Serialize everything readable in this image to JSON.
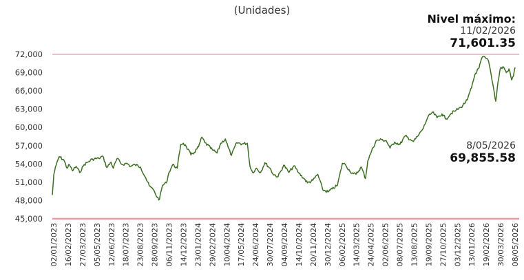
{
  "subtitle": "(Unidades)",
  "annotations": {
    "max": {
      "heading": "Nivel máximo:",
      "date": "11/02/2026",
      "value": "71,601.35"
    },
    "last": {
      "date": "8/05/2026",
      "value": "69,855.58"
    }
  },
  "chart_data": {
    "type": "line",
    "title": "",
    "subtitle": "(Unidades)",
    "ylim": [
      45000,
      72000
    ],
    "y_ticks": [
      "45,000",
      "48,000",
      "51,000",
      "54,000",
      "57,000",
      "60,000",
      "63,000",
      "66,000",
      "69,000",
      "72,000"
    ],
    "y_tick_values": [
      45000,
      48000,
      51000,
      54000,
      57000,
      60000,
      63000,
      66000,
      69000,
      72000
    ],
    "x_range": [
      "2023-01-02",
      "2026-05-08"
    ],
    "x_ticks": [
      "02/01/2023",
      "16/02/2023",
      "27/03/2023",
      "05/05/2023",
      "12/06/2023",
      "18/07/2023",
      "23/08/2023",
      "28/09/2023",
      "06/11/2023",
      "14/12/2023",
      "23/01/2024",
      "29/02/2024",
      "10/04/2024",
      "17/05/2024",
      "24/06/2024",
      "30/07/2024",
      "04/09/2024",
      "14/10/2024",
      "20/11/2024",
      "30/12/2024",
      "06/02/2025",
      "14/03/2025",
      "24/04/2025",
      "02/06/2025",
      "08/07/2025",
      "13/08/2025",
      "19/09/2025",
      "27/10/2025",
      "03/12/2025",
      "13/01/2026",
      "19/02/2026",
      "30/03/2026",
      "08/05/2026"
    ],
    "reference_lines": [
      {
        "value": 72000,
        "color": "#e79aa6"
      },
      {
        "value": 45000,
        "color": "#e79aa6"
      }
    ],
    "series_color": "#3b6e22",
    "series": [
      {
        "points": [
          [
            "2023-01-02",
            48900
          ],
          [
            "2023-01-06",
            52300
          ],
          [
            "2023-01-12",
            53800
          ],
          [
            "2023-01-20",
            55200
          ],
          [
            "2023-02-01",
            54700
          ],
          [
            "2023-02-10",
            53300
          ],
          [
            "2023-02-16",
            53900
          ],
          [
            "2023-02-24",
            52900
          ],
          [
            "2023-03-06",
            53600
          ],
          [
            "2023-03-15",
            52600
          ],
          [
            "2023-03-27",
            53900
          ],
          [
            "2023-04-06",
            54300
          ],
          [
            "2023-04-18",
            54800
          ],
          [
            "2023-05-05",
            54900
          ],
          [
            "2023-05-15",
            55300
          ],
          [
            "2023-05-26",
            53400
          ],
          [
            "2023-06-06",
            54300
          ],
          [
            "2023-06-12",
            53300
          ],
          [
            "2023-06-22",
            54900
          ],
          [
            "2023-07-05",
            53900
          ],
          [
            "2023-07-18",
            54100
          ],
          [
            "2023-07-28",
            53600
          ],
          [
            "2023-08-08",
            53900
          ],
          [
            "2023-08-23",
            53500
          ],
          [
            "2023-09-05",
            51800
          ],
          [
            "2023-09-15",
            50400
          ],
          [
            "2023-09-28",
            49600
          ],
          [
            "2023-10-06",
            48500
          ],
          [
            "2023-10-12",
            48200
          ],
          [
            "2023-10-20",
            50500
          ],
          [
            "2023-10-30",
            50900
          ],
          [
            "2023-11-06",
            52600
          ],
          [
            "2023-11-16",
            53900
          ],
          [
            "2023-11-28",
            53300
          ],
          [
            "2023-12-07",
            57200
          ],
          [
            "2023-12-14",
            57400
          ],
          [
            "2023-12-22",
            56800
          ],
          [
            "2024-01-03",
            55500
          ],
          [
            "2024-01-12",
            55900
          ],
          [
            "2024-01-23",
            56800
          ],
          [
            "2024-02-01",
            58400
          ],
          [
            "2024-02-09",
            57500
          ],
          [
            "2024-02-29",
            56300
          ],
          [
            "2024-03-12",
            55800
          ],
          [
            "2024-03-22",
            57400
          ],
          [
            "2024-04-03",
            58100
          ],
          [
            "2024-04-10",
            56800
          ],
          [
            "2024-04-19",
            55400
          ],
          [
            "2024-05-03",
            57500
          ],
          [
            "2024-05-17",
            57300
          ],
          [
            "2024-05-31",
            57400
          ],
          [
            "2024-06-07",
            53600
          ],
          [
            "2024-06-14",
            52600
          ],
          [
            "2024-06-24",
            53300
          ],
          [
            "2024-07-05",
            52600
          ],
          [
            "2024-07-16",
            54200
          ],
          [
            "2024-07-30",
            53300
          ],
          [
            "2024-08-06",
            52400
          ],
          [
            "2024-08-20",
            51900
          ],
          [
            "2024-09-04",
            53800
          ],
          [
            "2024-09-18",
            52600
          ],
          [
            "2024-10-01",
            53700
          ],
          [
            "2024-10-14",
            52500
          ],
          [
            "2024-10-28",
            51600
          ],
          [
            "2024-11-06",
            50900
          ],
          [
            "2024-11-20",
            51300
          ],
          [
            "2024-12-03",
            52300
          ],
          [
            "2024-12-16",
            49800
          ],
          [
            "2024-12-30",
            49400
          ],
          [
            "2025-01-10",
            49900
          ],
          [
            "2025-01-24",
            50500
          ],
          [
            "2025-02-06",
            54100
          ],
          [
            "2025-02-14",
            53900
          ],
          [
            "2025-02-26",
            52800
          ],
          [
            "2025-03-07",
            52400
          ],
          [
            "2025-03-14",
            52300
          ],
          [
            "2025-03-28",
            53500
          ],
          [
            "2025-04-08",
            51600
          ],
          [
            "2025-04-14",
            54500
          ],
          [
            "2025-04-24",
            56100
          ],
          [
            "2025-05-06",
            57800
          ],
          [
            "2025-05-20",
            58000
          ],
          [
            "2025-06-02",
            57800
          ],
          [
            "2025-06-12",
            56600
          ],
          [
            "2025-06-24",
            57600
          ],
          [
            "2025-07-08",
            57200
          ],
          [
            "2025-07-22",
            58600
          ],
          [
            "2025-08-05",
            58000
          ],
          [
            "2025-08-13",
            57700
          ],
          [
            "2025-08-26",
            58700
          ],
          [
            "2025-09-08",
            59900
          ],
          [
            "2025-09-19",
            61600
          ],
          [
            "2025-10-02",
            62500
          ],
          [
            "2025-10-14",
            61600
          ],
          [
            "2025-10-27",
            62200
          ],
          [
            "2025-11-07",
            61400
          ],
          [
            "2025-11-20",
            62300
          ],
          [
            "2025-12-03",
            62800
          ],
          [
            "2025-12-16",
            63300
          ],
          [
            "2026-01-02",
            64500
          ],
          [
            "2026-01-13",
            66500
          ],
          [
            "2026-01-22",
            68700
          ],
          [
            "2026-02-02",
            69800
          ],
          [
            "2026-02-11",
            71600
          ],
          [
            "2026-02-19",
            71400
          ],
          [
            "2026-02-27",
            70900
          ],
          [
            "2026-03-06",
            68600
          ],
          [
            "2026-03-12",
            66500
          ],
          [
            "2026-03-18",
            64300
          ],
          [
            "2026-03-24",
            67500
          ],
          [
            "2026-03-30",
            69700
          ],
          [
            "2026-04-08",
            69900
          ],
          [
            "2026-04-15",
            69000
          ],
          [
            "2026-04-22",
            69600
          ],
          [
            "2026-04-29",
            67800
          ],
          [
            "2026-05-04",
            68500
          ],
          [
            "2026-05-08",
            69855.58
          ]
        ]
      }
    ]
  }
}
